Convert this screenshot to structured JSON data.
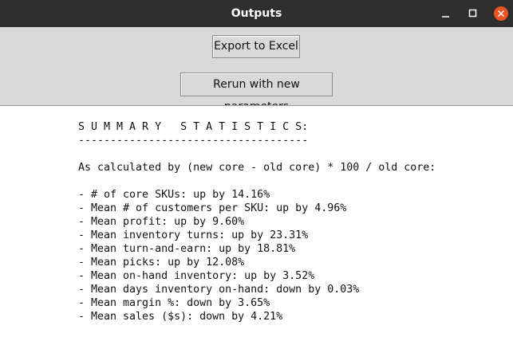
{
  "window": {
    "title": "Outputs"
  },
  "buttons": [
    "Export to Excel",
    "Rerun with new parameters"
  ],
  "output": {
    "heading": "S U M M A R Y   S T A T I S T I C S:",
    "rule": "------------------------------------",
    "formula": "As calculated by (new core - old core) * 100 / old core:",
    "lines": [
      "- # of core SKUs: up by 14.16%",
      "- Mean # of customers per SKU: up by 4.96%",
      "- Mean profit: up by 9.60%",
      "- Mean inventory turns: up by 23.31%",
      "- Mean turn-and-earn: up by 18.81%",
      "- Mean picks: up by 12.08%",
      "- Mean on-hand inventory: up by 3.52%",
      "- Mean days inventory on-hand: down by 0.03%",
      "- Mean margin %: down by 3.65%",
      "- Mean sales ($s): down by 4.21%"
    ]
  }
}
